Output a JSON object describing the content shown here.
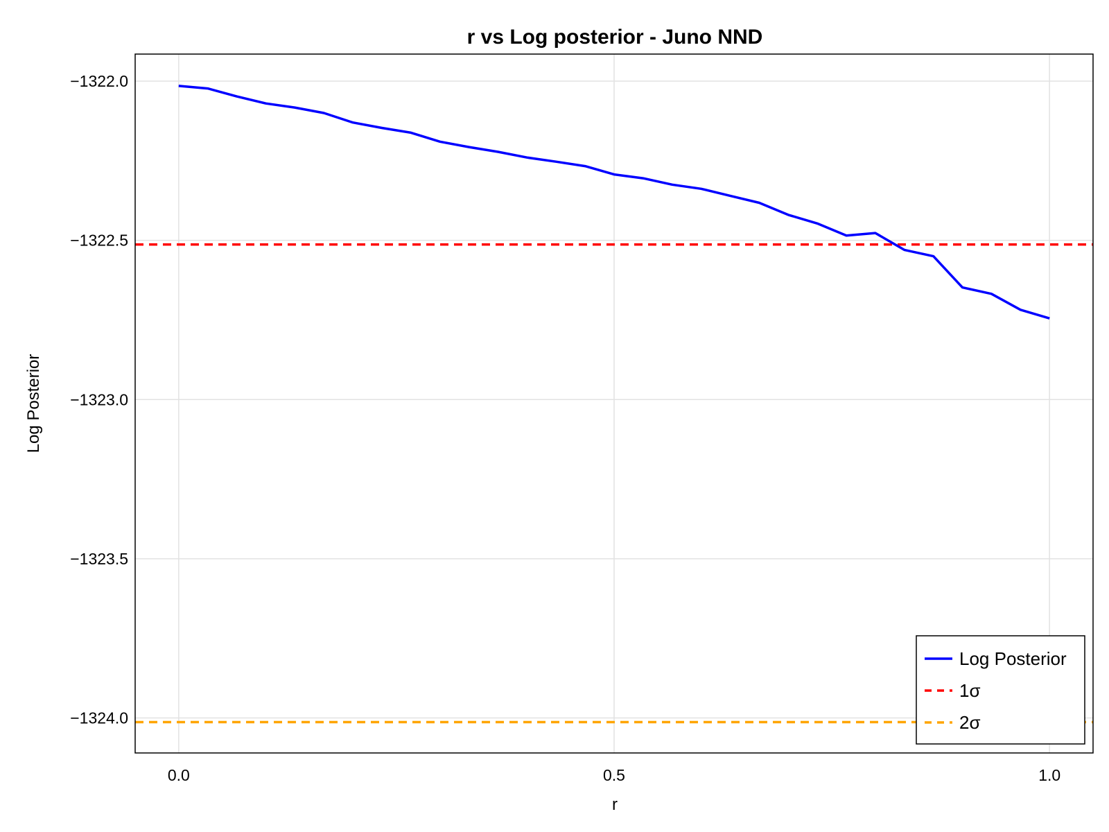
{
  "chart_data": {
    "type": "line",
    "title": "r vs Log posterior - Juno NND",
    "xlabel": "r",
    "ylabel": "Log Posterior",
    "xlim": [
      -0.05,
      1.05
    ],
    "ylim": [
      -1324.11,
      -1321.915
    ],
    "xticks": [
      0.0,
      0.5,
      1.0
    ],
    "xtick_labels": [
      "0.0",
      "0.5",
      "1.0"
    ],
    "yticks": [
      -1322.0,
      -1322.5,
      -1323.0,
      -1323.5,
      -1324.0
    ],
    "ytick_labels": [
      "−1322.0",
      "−1322.5",
      "−1323.0",
      "−1323.5",
      "−1324.0"
    ],
    "grid": true,
    "legend_position": "bottom-right",
    "series": [
      {
        "name": "Log Posterior",
        "color": "#0000ff",
        "style": "solid",
        "x": [
          0.0,
          0.0333,
          0.0667,
          0.1,
          0.1333,
          0.1667,
          0.2,
          0.2333,
          0.2667,
          0.3,
          0.3333,
          0.3667,
          0.4,
          0.4333,
          0.4667,
          0.5,
          0.5333,
          0.5667,
          0.6,
          0.6333,
          0.6667,
          0.7,
          0.7333,
          0.7667,
          0.8,
          0.8333,
          0.8667,
          0.9,
          0.9333,
          0.9667,
          1.0
        ],
        "y": [
          -1322.015,
          -1322.023,
          -1322.048,
          -1322.07,
          -1322.083,
          -1322.1,
          -1322.13,
          -1322.147,
          -1322.162,
          -1322.19,
          -1322.207,
          -1322.222,
          -1322.24,
          -1322.253,
          -1322.267,
          -1322.293,
          -1322.305,
          -1322.325,
          -1322.338,
          -1322.36,
          -1322.382,
          -1322.42,
          -1322.447,
          -1322.485,
          -1322.477,
          -1322.53,
          -1322.55,
          -1322.648,
          -1322.668,
          -1322.718,
          -1322.745
        ]
      }
    ],
    "reference_lines": [
      {
        "name": "1σ",
        "y": -1322.513,
        "color": "#ff0000",
        "style": "dashed"
      },
      {
        "name": "2σ",
        "y": -1324.013,
        "color": "#ffa500",
        "style": "dashed"
      }
    ]
  }
}
